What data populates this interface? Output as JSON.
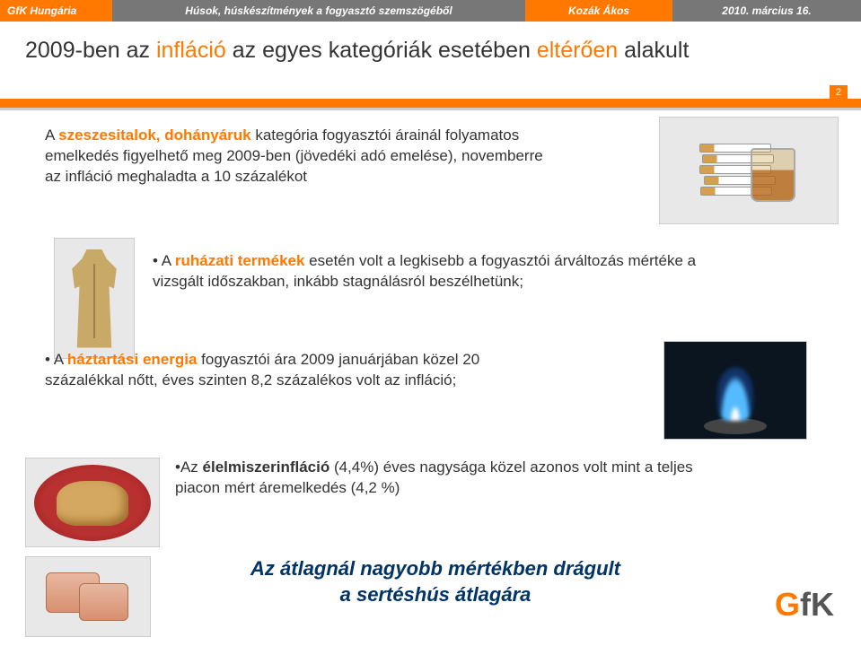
{
  "header": {
    "org": "GfK Hungária",
    "topic": "Húsok, húskészítmények a fogyasztó szemszögéből",
    "author": "Kozák Ákos",
    "date": "2010. március 16."
  },
  "slide_number": "2",
  "title": {
    "pre": "2009-ben az ",
    "hl1": "infláció",
    "mid": " az egyes kategóriák esetében ",
    "hl2": "eltérően",
    "post": " alakult"
  },
  "blocks": {
    "b1": {
      "bullet": "A ",
      "key": "szeszesitalok, dohányáruk",
      "rest": " kategória fogyasztói árainál folyamatos emelkedés figyelhető meg 2009-ben (jövedéki adó emelése), novemberre az infláció meghaladta a 10 százalékot"
    },
    "b2": {
      "bullet": "• A ",
      "key": "ruházati termékek",
      "rest": " esetén volt a legkisebb a fogyasztói árváltozás mértéke a vizsgált időszakban, inkább stagnálásról beszélhetünk;"
    },
    "b3": {
      "bullet": "• A ",
      "key": "háztartási energia",
      "rest": " fogyasztói ára 2009 januárjában közel 20 százalékkal nőtt, éves szinten 8,2 százalékos volt az infláció;"
    },
    "b4": {
      "bullet": "•Az ",
      "key": "élelmiszerinfláció",
      "rest1": " (4,4%) éves nagysága közel azonos volt mint a teljes piacon mért áremelkedés (4,2 %)"
    }
  },
  "conclusion": {
    "line1": "Az átlagnál nagyobb mértékben drágult",
    "line2": "a sertéshús átlagára"
  },
  "logo": {
    "g": "G",
    "fk": "fK"
  },
  "colors": {
    "orange": "#ff7900",
    "gray": "#777777",
    "navy": "#003366",
    "text": "#333333"
  }
}
